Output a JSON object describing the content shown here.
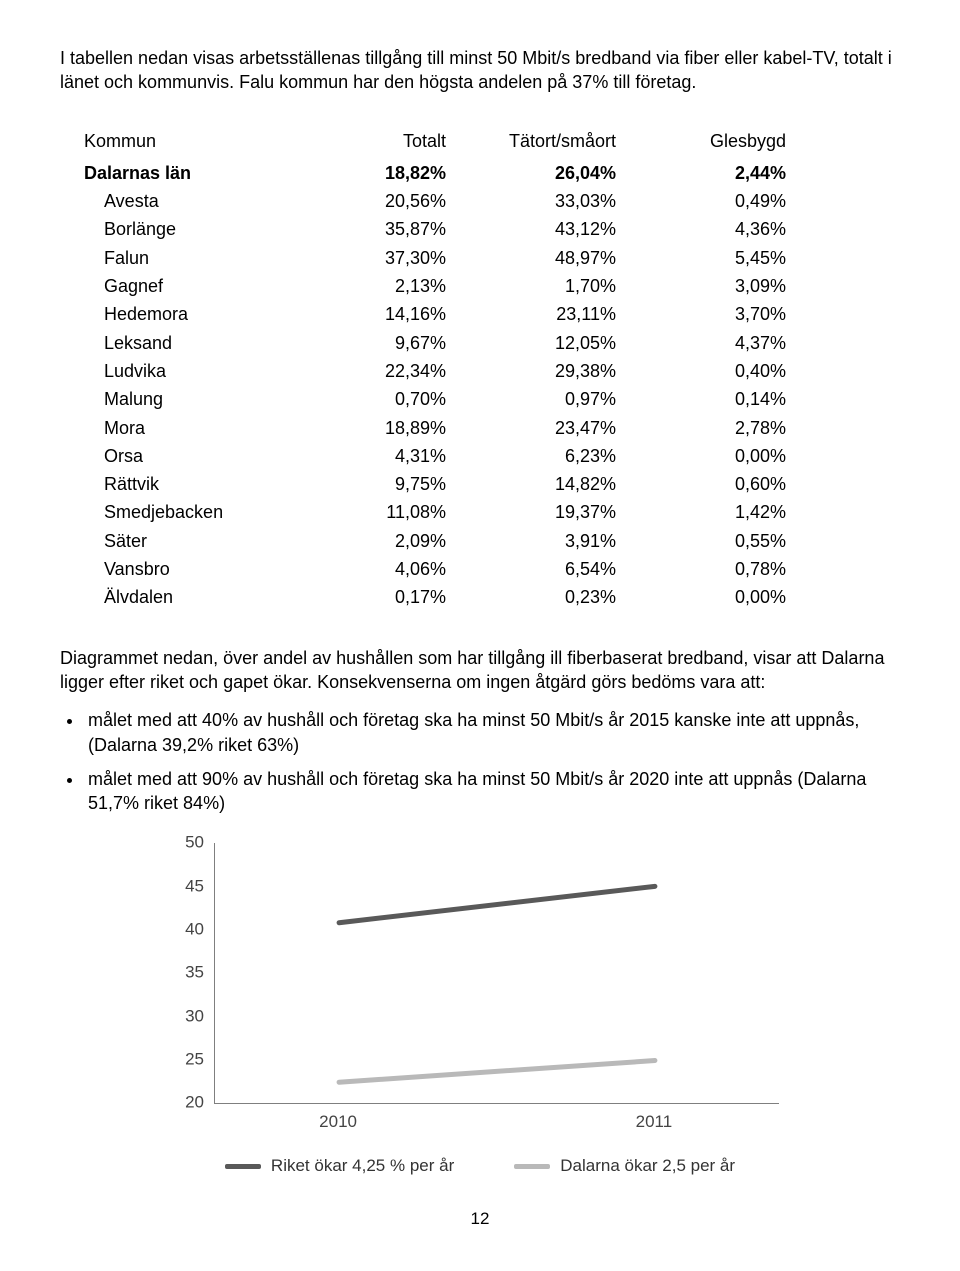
{
  "intro": "I tabellen nedan visas arbetsställenas tillgång till minst 50 Mbit/s bredband via fiber eller kabel-TV, totalt i länet och kommunvis. Falu kommun har den högsta andelen på 37% till företag.",
  "table": {
    "columns": [
      "Kommun",
      "Totalt",
      "Tätort/småort",
      "Glesbygd"
    ],
    "header_row": {
      "name": "Dalarnas län",
      "values": [
        "18,82%",
        "26,04%",
        "2,44%"
      ]
    },
    "rows": [
      {
        "name": "Avesta",
        "values": [
          "20,56%",
          "33,03%",
          "0,49%"
        ]
      },
      {
        "name": "Borlänge",
        "values": [
          "35,87%",
          "43,12%",
          "4,36%"
        ]
      },
      {
        "name": "Falun",
        "values": [
          "37,30%",
          "48,97%",
          "5,45%"
        ]
      },
      {
        "name": "Gagnef",
        "values": [
          "2,13%",
          "1,70%",
          "3,09%"
        ]
      },
      {
        "name": "Hedemora",
        "values": [
          "14,16%",
          "23,11%",
          "3,70%"
        ]
      },
      {
        "name": "Leksand",
        "values": [
          "9,67%",
          "12,05%",
          "4,37%"
        ]
      },
      {
        "name": "Ludvika",
        "values": [
          "22,34%",
          "29,38%",
          "0,40%"
        ]
      },
      {
        "name": "Malung",
        "values": [
          "0,70%",
          "0,97%",
          "0,14%"
        ]
      },
      {
        "name": "Mora",
        "values": [
          "18,89%",
          "23,47%",
          "2,78%"
        ]
      },
      {
        "name": "Orsa",
        "values": [
          "4,31%",
          "6,23%",
          "0,00%"
        ]
      },
      {
        "name": "Rättvik",
        "values": [
          "9,75%",
          "14,82%",
          "0,60%"
        ]
      },
      {
        "name": "Smedjebacken",
        "values": [
          "11,08%",
          "19,37%",
          "1,42%"
        ]
      },
      {
        "name": "Säter",
        "values": [
          "2,09%",
          "3,91%",
          "0,55%"
        ]
      },
      {
        "name": "Vansbro",
        "values": [
          "4,06%",
          "6,54%",
          "0,78%"
        ]
      },
      {
        "name": "Älvdalen",
        "values": [
          "0,17%",
          "0,23%",
          "0,00%"
        ]
      }
    ]
  },
  "para1": "Diagrammet nedan, över andel av hushållen som har tillgång ill fiberbaserat bredband, visar att Dalarna ligger efter riket och gapet ökar. Konsekvenserna om ingen åtgärd görs bedöms vara att:",
  "bullets": [
    "målet med att 40% av hushåll och företag ska ha minst 50 Mbit/s år 2015 kanske inte att uppnås, (Dalarna 39,2% riket 63%)",
    "målet med att 90% av hushåll och företag ska ha minst 50 Mbit/s år 2020 inte att uppnås (Dalarna 51,7% riket 84%)"
  ],
  "chart": {
    "type": "line",
    "ylim": [
      20,
      50
    ],
    "ytick_step": 5,
    "yticks": [
      20,
      25,
      30,
      35,
      40,
      45,
      50
    ],
    "x_categories": [
      "2010",
      "2011"
    ],
    "series": [
      {
        "name": "Riket ökar 4,25 % per år",
        "color": "#595959",
        "values": [
          40.8,
          45.0
        ],
        "width": 5
      },
      {
        "name": "Dalarna ökar 2,5 per år",
        "color": "#b9b9b9",
        "values": [
          22.4,
          24.9
        ],
        "width": 5
      }
    ],
    "axis_color": "#7f7f7f",
    "label_color": "#444444",
    "label_fontsize": 17,
    "background_color": "#ffffff"
  },
  "page_number": "12"
}
